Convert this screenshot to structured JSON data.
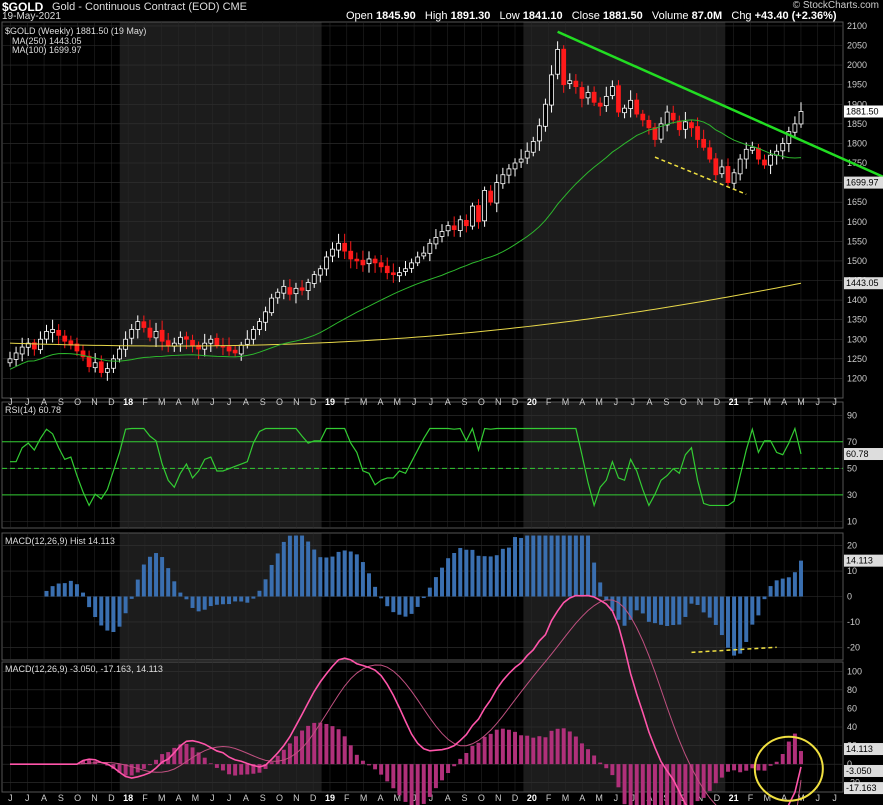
{
  "header": {
    "symbol": "$GOLD",
    "name": "Gold - Continuous Contract (EOD)",
    "exchange": "CME",
    "date": "19-May-2021",
    "brand": "© StockCharts.com",
    "open_label": "Open",
    "open": "1845.90",
    "high_label": "High",
    "high": "1891.30",
    "low_label": "Low",
    "low": "1841.10",
    "close_label": "Close",
    "close": "1881.50",
    "volume_label": "Volume",
    "volume": "87.0M",
    "chg_label": "Chg",
    "chg": "+43.40 (+2.36%)"
  },
  "colors": {
    "up": "#ffffff",
    "down": "#ff1a1a",
    "ma250": "#e8d84a",
    "ma100": "#2db82d",
    "rsi": "#33cc33",
    "macd_hist": "#3a6fb0",
    "macd_line": "#ff55aa",
    "signal": "#c05080",
    "trend": "#22dd22",
    "dash": "#f0e040",
    "circle": "#f0e040"
  },
  "chart_data": [
    {
      "type": "candlestick",
      "legend": [
        "$GOLD (Weekly) 1881.50 (19 May)",
        "MA(250) 1443.05",
        "MA(100) 1699.97"
      ],
      "ylim": [
        1150,
        2110
      ],
      "yticks": [
        1200,
        1250,
        1300,
        1350,
        1400,
        1450,
        1500,
        1550,
        1600,
        1650,
        1700,
        1750,
        1800,
        1850,
        1900,
        1950,
        2000,
        2050,
        2100
      ],
      "last_tags": [
        "1881.50",
        "1699.97",
        "1443.05"
      ],
      "x_labels": [
        "J",
        "J",
        "A",
        "S",
        "O",
        "N",
        "D",
        "18",
        "F",
        "M",
        "A",
        "M",
        "J",
        "J",
        "A",
        "S",
        "O",
        "N",
        "D",
        "19",
        "F",
        "M",
        "A",
        "M",
        "J",
        "J",
        "A",
        "S",
        "O",
        "N",
        "D",
        "20",
        "F",
        "M",
        "A",
        "M",
        "J",
        "J",
        "A",
        "S",
        "O",
        "N",
        "D",
        "21",
        "F",
        "M",
        "A",
        "M",
        "J",
        "J"
      ],
      "closes": [
        1250,
        1265,
        1280,
        1290,
        1275,
        1300,
        1320,
        1325,
        1310,
        1295,
        1285,
        1270,
        1255,
        1230,
        1240,
        1215,
        1225,
        1250,
        1275,
        1300,
        1325,
        1345,
        1330,
        1305,
        1320,
        1295,
        1285,
        1290,
        1305,
        1300,
        1285,
        1275,
        1290,
        1300,
        1285,
        1280,
        1270,
        1265,
        1285,
        1300,
        1325,
        1345,
        1370,
        1405,
        1420,
        1435,
        1415,
        1430,
        1425,
        1445,
        1465,
        1480,
        1510,
        1530,
        1545,
        1525,
        1505,
        1500,
        1490,
        1505,
        1495,
        1485,
        1470,
        1465,
        1470,
        1480,
        1495,
        1510,
        1520,
        1545,
        1560,
        1575,
        1590,
        1580,
        1605,
        1590,
        1640,
        1600,
        1680,
        1650,
        1700,
        1720,
        1735,
        1750,
        1760,
        1780,
        1805,
        1845,
        1900,
        1975,
        2040,
        1950,
        1960,
        1945,
        1915,
        1930,
        1905,
        1895,
        1920,
        1945,
        1880,
        1890,
        1910,
        1875,
        1860,
        1840,
        1810,
        1850,
        1880,
        1860,
        1835,
        1855,
        1840,
        1810,
        1790,
        1760,
        1720,
        1740,
        1700,
        1725,
        1760,
        1785,
        1790,
        1760,
        1745,
        1770,
        1780,
        1800,
        1830,
        1850,
        1881.5
      ],
      "ma250_end": 1443.05,
      "ma100_end": 1699.97
    },
    {
      "type": "line",
      "legend": "RSI(14) 60.78",
      "ylim": [
        5,
        100
      ],
      "yticks": [
        10,
        30,
        50,
        70,
        90
      ],
      "last_tag": "60.78",
      "last": 60.78
    },
    {
      "type": "bar",
      "legend": "MACD(12,26,9) Hist 14.113",
      "ylim": [
        -25,
        25
      ],
      "yticks": [
        -20,
        -10,
        0,
        10,
        20
      ],
      "last_tag": "14.113",
      "last": 14.113
    },
    {
      "type": "line",
      "legend": "MACD(12,26,9) -3.050, -17.163, 14.113",
      "ylim": [
        -30,
        110
      ],
      "yticks": [
        -20,
        0,
        20,
        40,
        60,
        80,
        100
      ],
      "last_tags": [
        "14.113",
        "-3.050",
        "-17.163"
      ],
      "macd_last": -3.05,
      "signal_last": -17.163,
      "hist_last": 14.113
    }
  ]
}
